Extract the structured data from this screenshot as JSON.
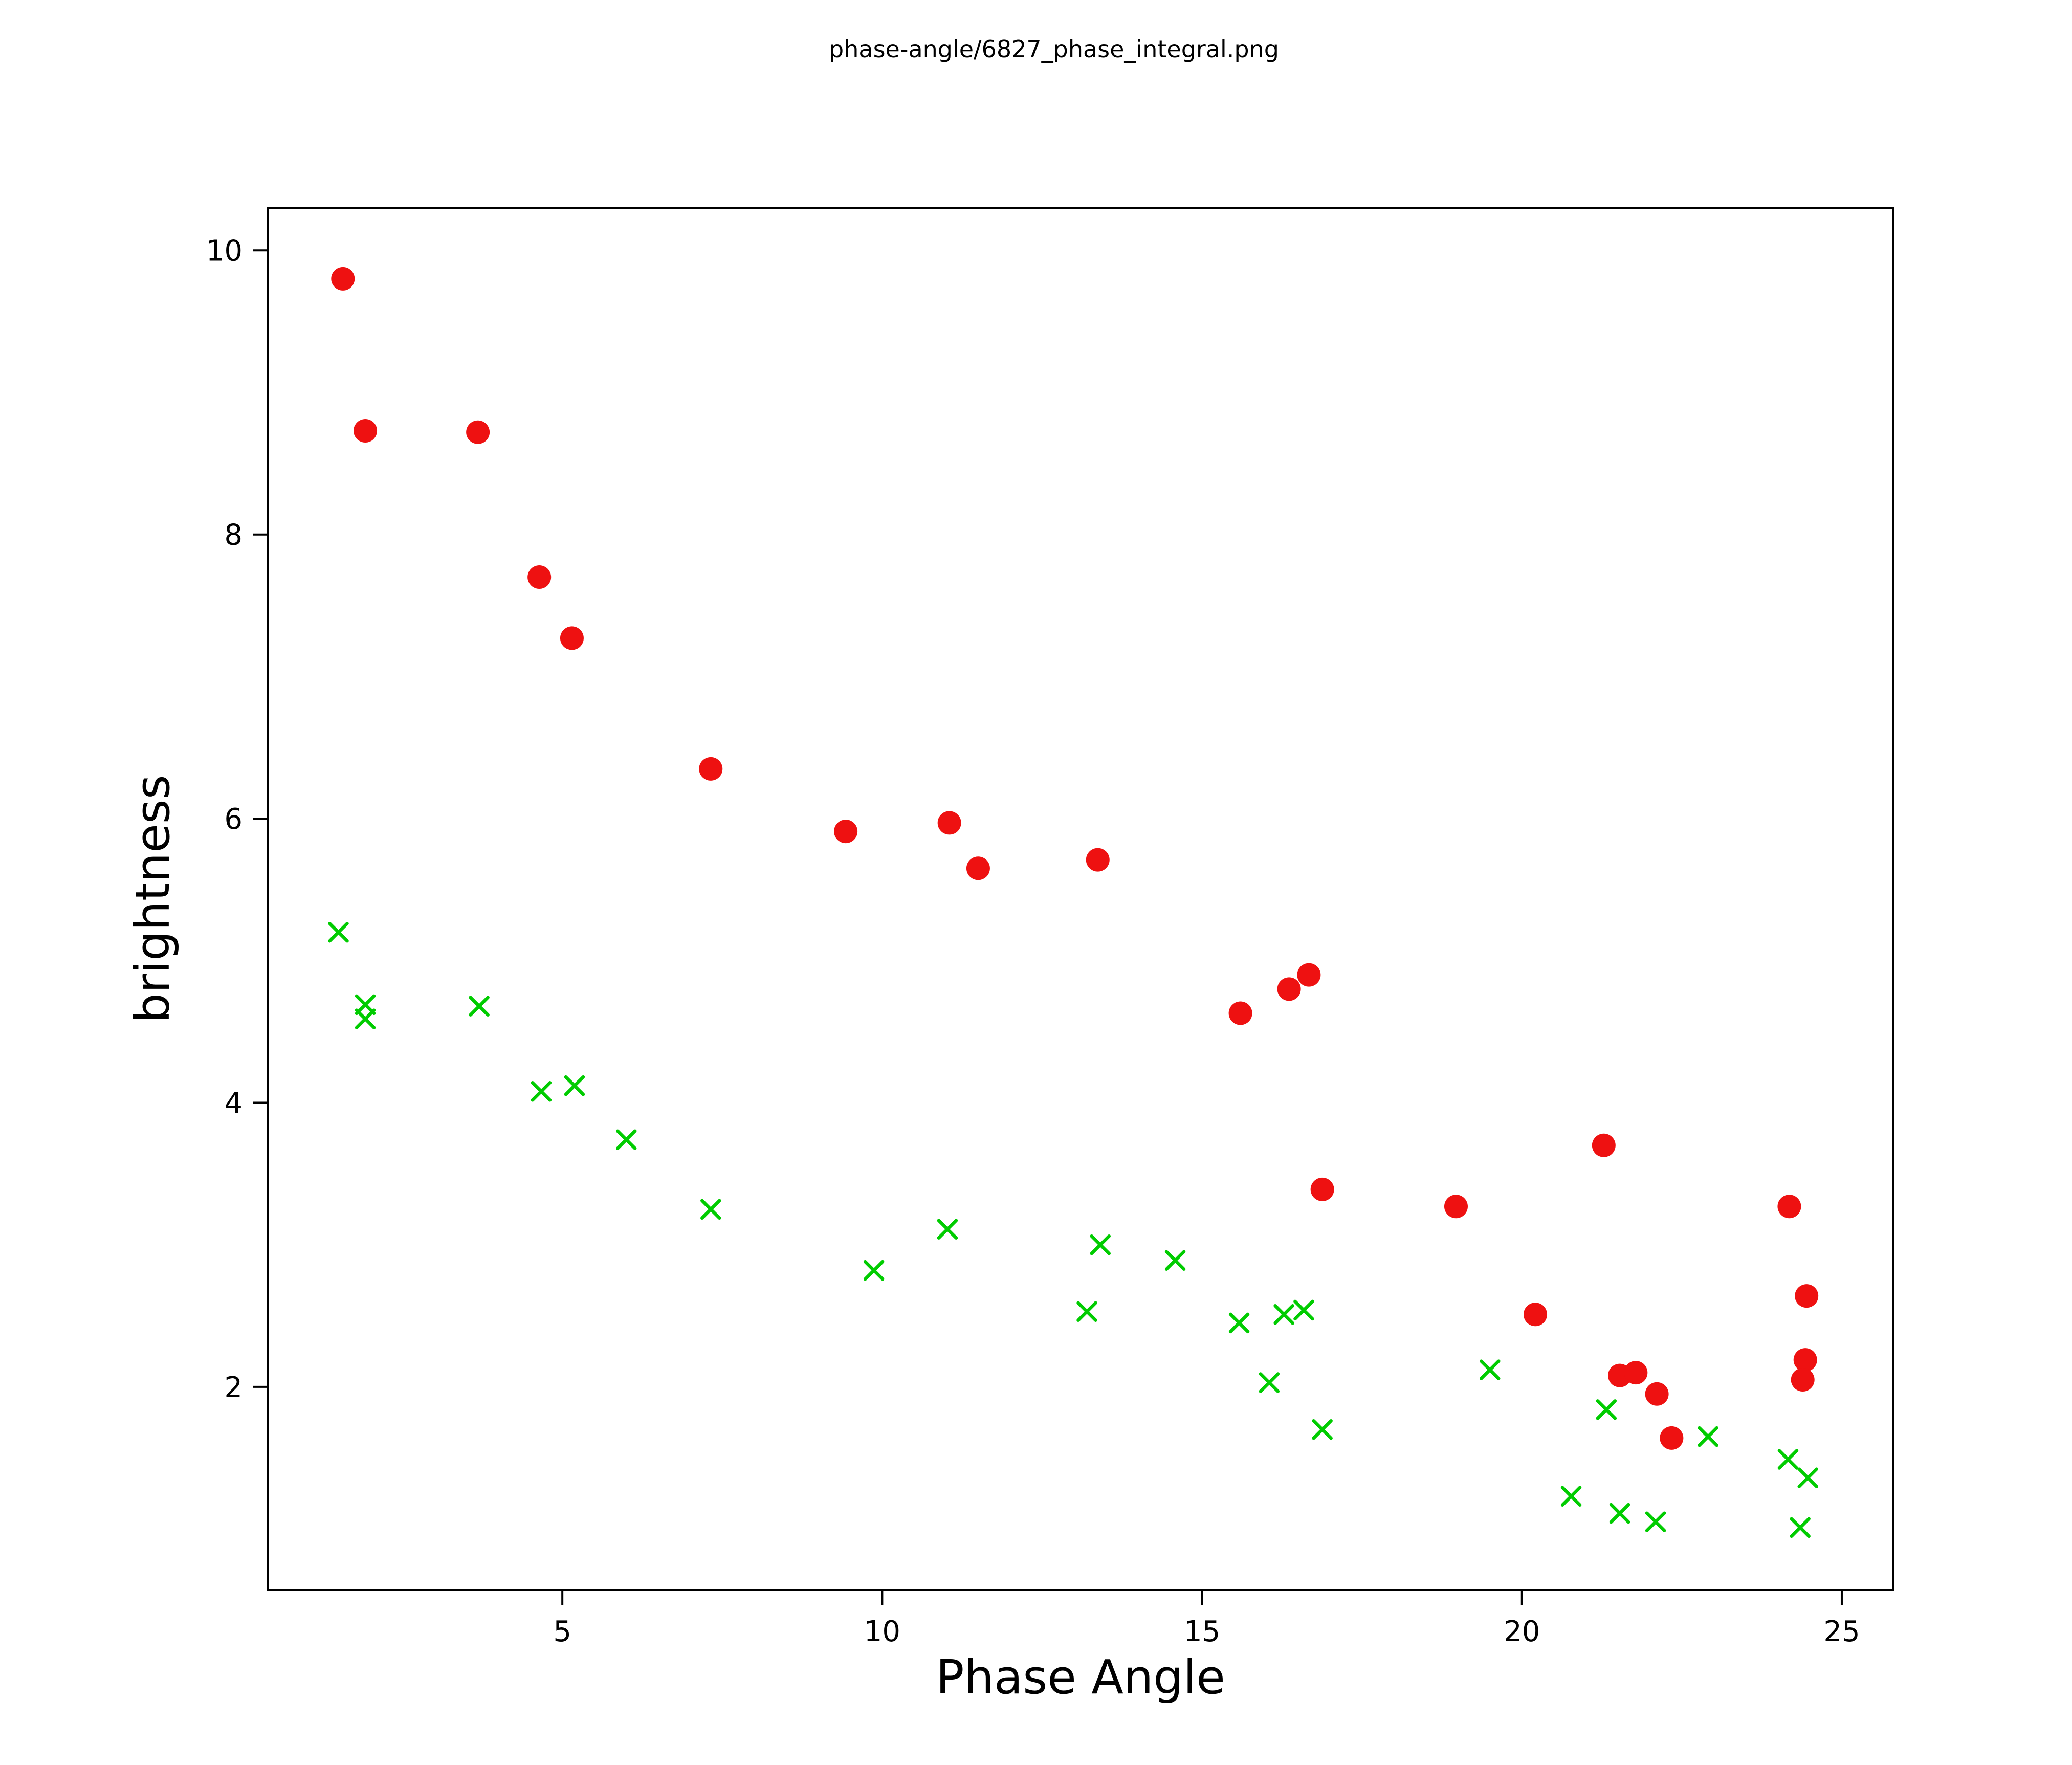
{
  "figure_title": "phase-angle/6827_phase_integral.png",
  "chart_data": {
    "type": "scatter",
    "title": "phase-angle/6827_phase_integral.png",
    "xlabel": "Phase Angle",
    "ylabel": "brightness",
    "xlim": [
      0.4,
      25.8
    ],
    "ylim": [
      0.57,
      10.3
    ],
    "x_ticks": [
      5,
      10,
      15,
      20,
      25
    ],
    "y_ticks": [
      2,
      4,
      6,
      8,
      10
    ],
    "grid": false,
    "legend": "none",
    "series": [
      {
        "name": "red-circles",
        "marker": "circle",
        "color": "#ee1111",
        "points": [
          [
            1.57,
            9.8
          ],
          [
            1.92,
            8.73
          ],
          [
            3.68,
            8.72
          ],
          [
            4.64,
            7.7
          ],
          [
            5.15,
            7.27
          ],
          [
            7.32,
            6.35
          ],
          [
            9.43,
            5.91
          ],
          [
            11.05,
            5.97
          ],
          [
            11.5,
            5.65
          ],
          [
            13.37,
            5.71
          ],
          [
            15.6,
            4.63
          ],
          [
            16.36,
            4.8
          ],
          [
            16.67,
            4.9
          ],
          [
            16.88,
            3.39
          ],
          [
            18.97,
            3.27
          ],
          [
            20.21,
            2.51
          ],
          [
            21.28,
            3.7
          ],
          [
            21.53,
            2.08
          ],
          [
            21.78,
            2.1
          ],
          [
            22.11,
            1.95
          ],
          [
            22.34,
            1.64
          ],
          [
            24.18,
            3.27
          ],
          [
            24.45,
            2.64
          ],
          [
            24.43,
            2.19
          ],
          [
            24.39,
            2.05
          ]
        ]
      },
      {
        "name": "green-crosses",
        "marker": "x",
        "color": "#00cc00",
        "points": [
          [
            1.5,
            5.2
          ],
          [
            1.92,
            4.69
          ],
          [
            1.92,
            4.59
          ],
          [
            3.7,
            4.68
          ],
          [
            4.67,
            4.08
          ],
          [
            5.19,
            4.12
          ],
          [
            6.0,
            3.74
          ],
          [
            7.32,
            3.25
          ],
          [
            9.87,
            2.82
          ],
          [
            11.02,
            3.11
          ],
          [
            13.41,
            3.0
          ],
          [
            13.2,
            2.53
          ],
          [
            14.58,
            2.89
          ],
          [
            15.58,
            2.45
          ],
          [
            16.28,
            2.51
          ],
          [
            16.05,
            2.03
          ],
          [
            16.59,
            2.54
          ],
          [
            16.88,
            1.7
          ],
          [
            19.5,
            2.12
          ],
          [
            20.77,
            1.23
          ],
          [
            21.32,
            1.84
          ],
          [
            21.53,
            1.11
          ],
          [
            22.09,
            1.05
          ],
          [
            22.91,
            1.65
          ],
          [
            24.16,
            1.49
          ],
          [
            24.47,
            1.36
          ],
          [
            24.35,
            1.01
          ]
        ]
      }
    ]
  }
}
